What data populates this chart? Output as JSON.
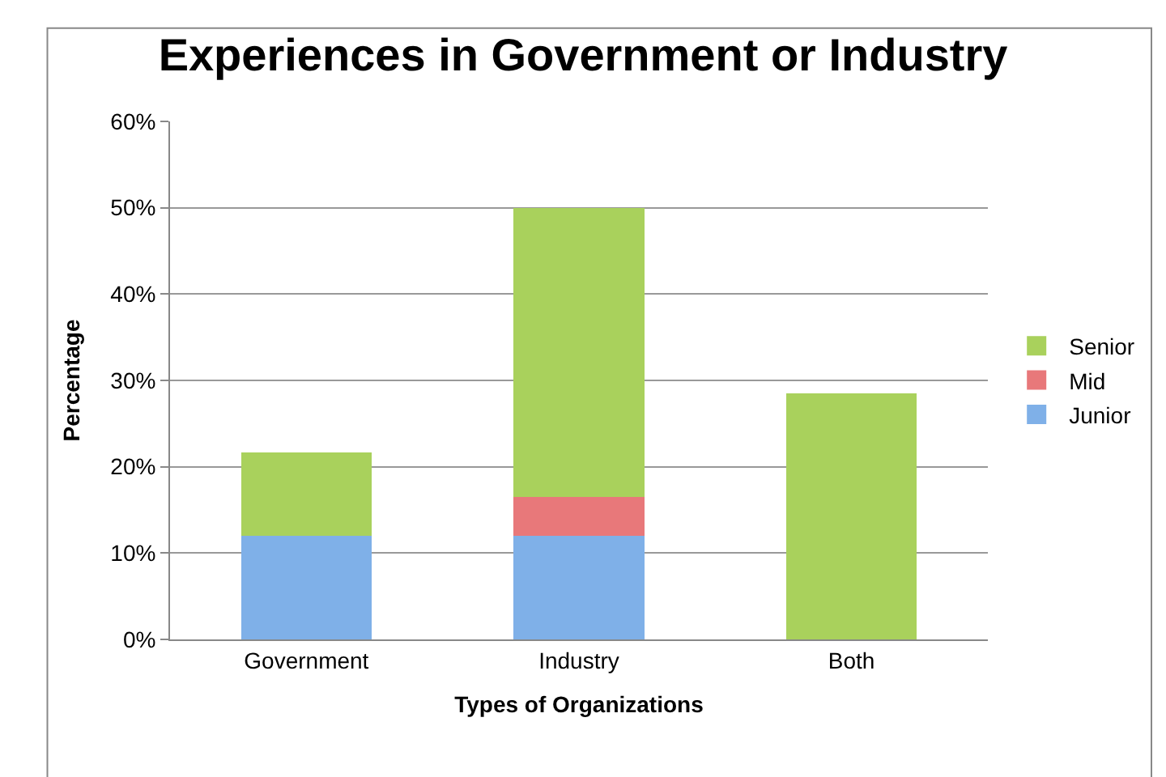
{
  "chart_data": {
    "type": "bar",
    "title": "Experiences in Government or Industry",
    "xlabel": "Types of Organizations",
    "ylabel": "Percentage",
    "categories": [
      "Government",
      "Industry",
      "Both"
    ],
    "series": [
      {
        "name": "Junior",
        "color": "#7fb0e8",
        "values": [
          12,
          12,
          0
        ]
      },
      {
        "name": "Mid",
        "color": "#e8787a",
        "values": [
          0,
          4.5,
          0
        ]
      },
      {
        "name": "Senior",
        "color": "#a9d15c",
        "values": [
          9.7,
          33.5,
          28.5
        ]
      }
    ],
    "stacked": true,
    "ylim": [
      0,
      60
    ],
    "yticks": [
      {
        "value": 0,
        "label": "0%"
      },
      {
        "value": 10,
        "label": "10%"
      },
      {
        "value": 20,
        "label": "20%"
      },
      {
        "value": 30,
        "label": "30%"
      },
      {
        "value": 40,
        "label": "40%"
      },
      {
        "value": 50,
        "label": "50%"
      },
      {
        "value": 60,
        "label": "60%"
      }
    ],
    "grid": "y",
    "legend": "right"
  }
}
